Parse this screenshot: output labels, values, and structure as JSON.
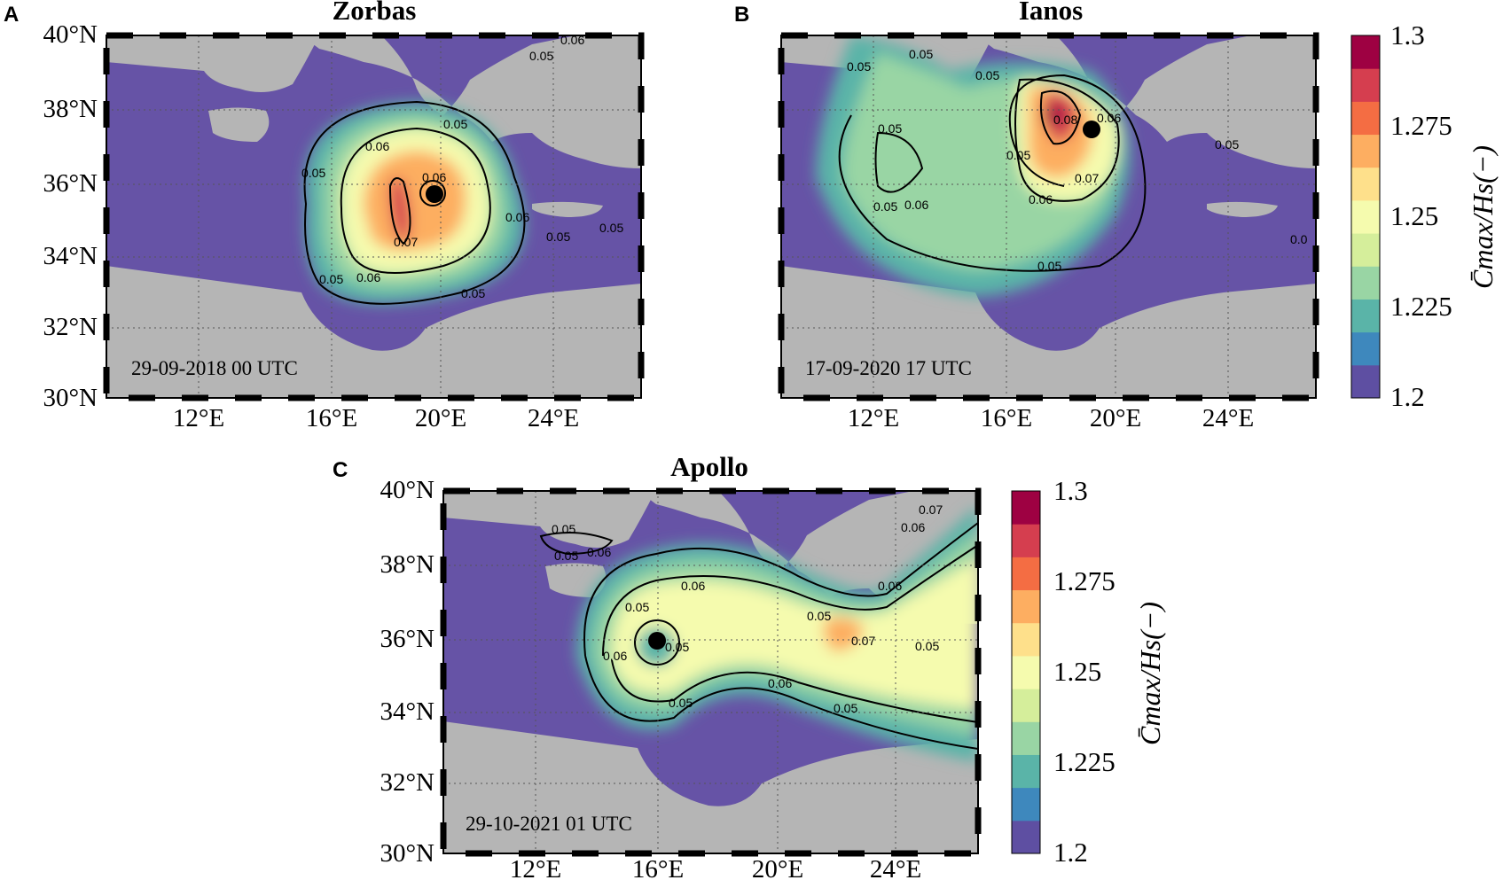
{
  "panels": [
    {
      "id": "A",
      "letter": "A",
      "title": "Zorbas",
      "timestamp": "29-09-2018 00 UTC",
      "contour_labels": [
        "0.05",
        "0.06",
        "0.06",
        "0.05",
        "0.05",
        "0.06",
        "0.05",
        "0.07",
        "0.05",
        "0.06",
        "0.06",
        "0.05",
        "0.05"
      ]
    },
    {
      "id": "B",
      "letter": "B",
      "title": "Ianos",
      "timestamp": "17-09-2020 17 UTC",
      "contour_labels": [
        "0.05",
        "0.05",
        "0.05",
        "0.05",
        "0.06",
        "0.05",
        "0.08",
        "0.06",
        "0.07",
        "0.06",
        "0.05",
        "0.05",
        "0.05",
        "0.0"
      ]
    },
    {
      "id": "C",
      "letter": "C",
      "title": "Apollo",
      "timestamp": "29-10-2021 01 UTC",
      "contour_labels": [
        "0.05",
        "0.05",
        "0.06",
        "0.06",
        "0.05",
        "0.05",
        "0.06",
        "0.05",
        "0.06",
        "0.05",
        "0.05",
        "0.06",
        "0.06",
        "0.07",
        "0.07",
        "0.05"
      ]
    }
  ],
  "axes": {
    "lat_ticks": [
      "40°N",
      "38°N",
      "36°N",
      "34°N",
      "32°N",
      "30°N"
    ],
    "lon_ticks": [
      "12°E",
      "16°E",
      "20°E",
      "24°E"
    ]
  },
  "colorbar": {
    "tick_labels": [
      "1.3",
      "1.275",
      "1.25",
      "1.225",
      "1.2"
    ],
    "label": "C̄max/Hs(−)",
    "colors": [
      "#5e4fa2",
      "#3e88bd",
      "#5ab4a8",
      "#99d5a4",
      "#d5ee9b",
      "#f5fbae",
      "#fee08b",
      "#fdae61",
      "#f46d43",
      "#d53e4f",
      "#9e0142"
    ]
  },
  "style": {
    "land": "#b5b5b5",
    "sea_low": "#6653a6"
  }
}
